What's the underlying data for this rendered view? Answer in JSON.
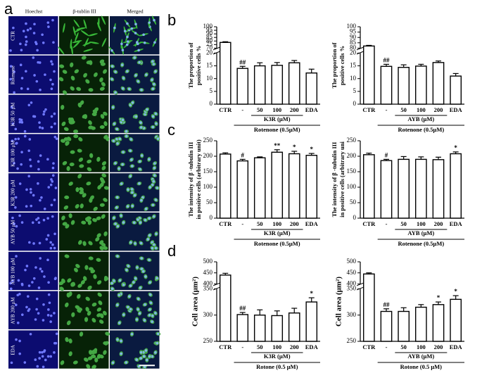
{
  "panel_labels": [
    "a",
    "b",
    "c",
    "d"
  ],
  "panel_a": {
    "columns": [
      "Hoechst",
      "β-tublin III",
      "Merged"
    ],
    "rows": [
      "CTR",
      "Rotenone",
      "K3R 50 μM",
      "K3R 100 μM",
      "K3R 200 μM",
      "AYB 50 μM",
      "AYB 100 μM",
      "AYB 200 μM",
      "EDA"
    ]
  },
  "chart_data": [
    {
      "type": "bar",
      "ylabel": [
        "The proportion of",
        "positive cells %"
      ],
      "categories": [
        "CTR",
        "-",
        "50",
        "100",
        "200",
        "EDA"
      ],
      "values": [
        78,
        14,
        15,
        15.2,
        16.2,
        12.2
      ],
      "errors": [
        1,
        0.8,
        1.2,
        1.1,
        0.9,
        1.5
      ],
      "annotations": [
        null,
        "##",
        null,
        null,
        null,
        null
      ],
      "group_label": "K3R (μM)",
      "condition_label": "Rotenone (0.5μM)",
      "color": "#ffffff",
      "segments": [
        {
          "ylim": [
            0,
            20
          ],
          "yticks": [
            0,
            5,
            10,
            15,
            20
          ]
        },
        {
          "ylim": [
            70,
            100
          ],
          "yticks": [
            70,
            75,
            80,
            85,
            90,
            95,
            100
          ]
        }
      ]
    },
    {
      "type": "bar",
      "ylabel": [
        "The proportion of",
        "positive cells %"
      ],
      "categories": [
        "CTR",
        "-",
        "50",
        "100",
        "200",
        "EDA"
      ],
      "values": [
        82,
        14.8,
        14.4,
        14.9,
        16.3,
        11
      ],
      "errors": [
        0.6,
        0.8,
        1,
        0.7,
        0.6,
        1
      ],
      "annotations": [
        null,
        "##",
        null,
        null,
        null,
        null
      ],
      "group_label": "AYB (μM)",
      "condition_label": "Rotenone (0.5μM)",
      "color": "#ffffff",
      "segments": [
        {
          "ylim": [
            0,
            20
          ],
          "yticks": [
            0,
            5,
            10,
            15,
            20
          ]
        },
        {
          "ylim": [
            80,
            100
          ],
          "yticks": [
            80,
            85,
            90,
            95,
            100
          ]
        }
      ]
    },
    {
      "type": "bar",
      "ylabel": [
        "The intensity of β -tubulin III",
        "in positive cells (arbitrary unit)"
      ],
      "categories": [
        "CTR",
        "-",
        "50",
        "100",
        "200",
        "EDA"
      ],
      "values": [
        207,
        185,
        195,
        213,
        208,
        203
      ],
      "errors": [
        4,
        5,
        3,
        8,
        8,
        6
      ],
      "annotations": [
        null,
        "#",
        null,
        "**",
        "*",
        "*"
      ],
      "group_label": "K3R (μM)",
      "condition_label": "Rotenone (0.5μM)",
      "color": "#ffffff",
      "ylim": [
        0,
        250
      ],
      "yticks": [
        0,
        50,
        100,
        150,
        200,
        250
      ]
    },
    {
      "type": "bar",
      "ylabel": [
        "The intensity of β -tubulin III",
        "in positive cells (arbitrary uni"
      ],
      "categories": [
        "CTR",
        "-",
        "50",
        "100",
        "200",
        "EDA"
      ],
      "values": [
        205,
        186,
        190,
        190,
        189,
        208
      ],
      "errors": [
        5,
        4,
        9,
        8,
        8,
        6
      ],
      "annotations": [
        null,
        "#",
        null,
        null,
        null,
        "*"
      ],
      "group_label": "AYB (μM)",
      "condition_label": "Rotenone (0.5μM)",
      "color": "#ffffff",
      "ylim": [
        0,
        250
      ],
      "yticks": [
        0,
        50,
        100,
        150,
        200,
        250
      ]
    },
    {
      "type": "bar",
      "ylabel": [
        "Cell area (μm²)"
      ],
      "categories": [
        "CTR",
        "-",
        "50",
        "100",
        "200",
        "EDA"
      ],
      "values": [
        440,
        301,
        300,
        299,
        304,
        325
      ],
      "errors": [
        8,
        4,
        10,
        9,
        9,
        8
      ],
      "annotations": [
        null,
        "##",
        null,
        null,
        null,
        "*"
      ],
      "group_label": "K3R (μM)",
      "condition_label": "Rotone (0.5 μM)",
      "color": "#ffffff",
      "segments": [
        {
          "ylim": [
            250,
            350
          ],
          "yticks": [
            250,
            300,
            350
          ]
        },
        {
          "ylim": [
            400,
            500
          ],
          "yticks": [
            400,
            450,
            500
          ]
        }
      ]
    },
    {
      "type": "bar",
      "ylabel": [
        "Cell area (μm²)"
      ],
      "categories": [
        "CTR",
        "-",
        "50",
        "100",
        "200",
        "EDA"
      ],
      "values": [
        445,
        307,
        307,
        315,
        320,
        330
      ],
      "errors": [
        5,
        5,
        7,
        5,
        5,
        7
      ],
      "annotations": [
        null,
        "##",
        null,
        null,
        "*",
        "*"
      ],
      "group_label": "AYB (μM)",
      "condition_label": "Rotone (0.5 μM)",
      "color": "#ffffff",
      "segments": [
        {
          "ylim": [
            250,
            350
          ],
          "yticks": [
            250,
            300,
            350
          ]
        },
        {
          "ylim": [
            400,
            500
          ],
          "yticks": [
            400,
            450,
            500
          ]
        }
      ]
    }
  ]
}
